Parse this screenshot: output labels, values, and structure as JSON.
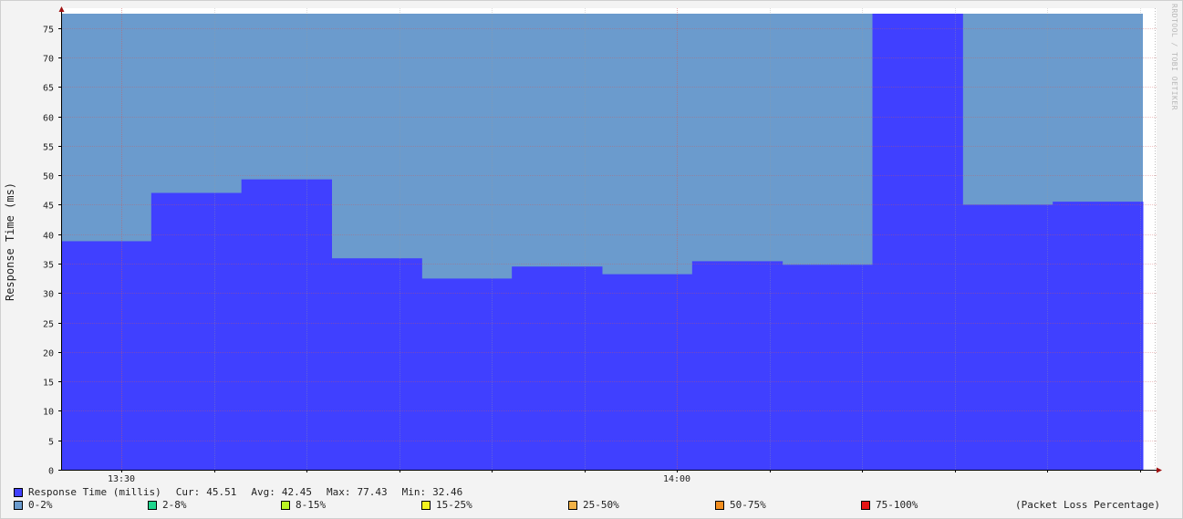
{
  "chart_data": {
    "type": "area",
    "ylabel": "Response Time (ms)",
    "ylim": [
      0,
      77.43
    ],
    "y_ticks": [
      0,
      5,
      10,
      15,
      20,
      25,
      30,
      35,
      40,
      45,
      50,
      55,
      60,
      65,
      70,
      75
    ],
    "x_tick_labels": [
      "13:30",
      "14:00"
    ],
    "x_start": "13:27",
    "x_end": "14:25",
    "grid": true,
    "series": [
      {
        "name": "Response Time (millis)",
        "color": "#4040ff",
        "values": [
          38.8,
          47.0,
          49.3,
          35.9,
          32.46,
          34.5,
          33.2,
          35.4,
          34.8,
          77.43,
          45.0,
          45.51
        ]
      },
      {
        "name": "0-2%",
        "color": "#6b9bcd",
        "role": "packet loss band (background)"
      }
    ],
    "stats": {
      "cur_label": "Cur:",
      "cur": "45.51",
      "avg_label": "Avg:",
      "avg": "42.45",
      "max_label": "Max:",
      "max": "77.43",
      "min_label": "Min:",
      "min": "32.46"
    },
    "loss_legend": [
      {
        "label": "0-2%",
        "color": "#6b9bcd"
      },
      {
        "label": "2-8%",
        "color": "#1fd58d"
      },
      {
        "label": "8-15%",
        "color": "#b9f323"
      },
      {
        "label": "15-25%",
        "color": "#f3f320"
      },
      {
        "label": "25-50%",
        "color": "#f2b247"
      },
      {
        "label": "50-75%",
        "color": "#f28e1f"
      },
      {
        "label": "75-100%",
        "color": "#e31414"
      }
    ],
    "loss_legend_title": "(Packet Loss Percentage)",
    "credit": "RRDTOOL / TOBI OETIKER"
  }
}
